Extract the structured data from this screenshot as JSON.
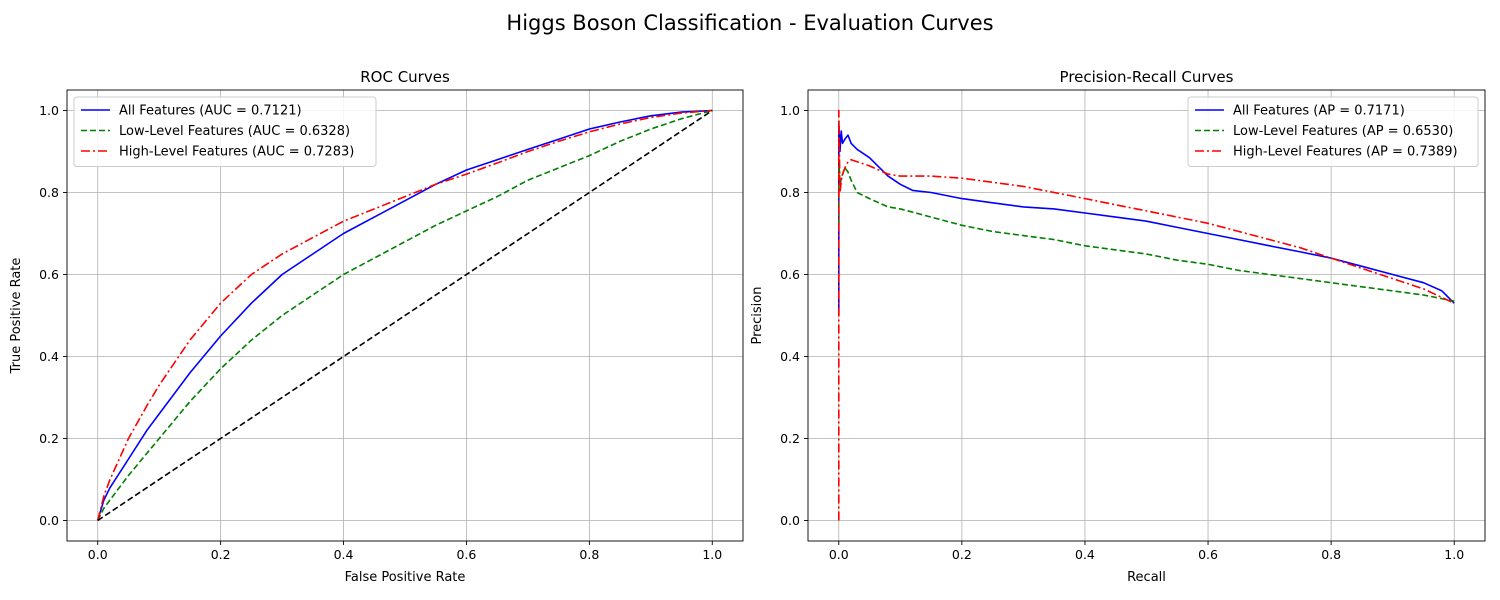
{
  "figure": {
    "title": "Higgs Boson Classification - Evaluation Curves"
  },
  "chart_data": [
    {
      "type": "line",
      "title": "ROC Curves",
      "xlabel": "False Positive Rate",
      "ylabel": "True Positive Rate",
      "xlim": [
        -0.05,
        1.05
      ],
      "ylim": [
        -0.05,
        1.05
      ],
      "xticks": [
        0.0,
        0.2,
        0.4,
        0.6,
        0.8,
        1.0
      ],
      "xtick_labels": [
        "0.0",
        "0.2",
        "0.4",
        "0.6",
        "0.8",
        "1.0"
      ],
      "yticks": [
        0.0,
        0.2,
        0.4,
        0.6,
        0.8,
        1.0
      ],
      "ytick_labels": [
        "0.0",
        "0.2",
        "0.4",
        "0.6",
        "0.8",
        "1.0"
      ],
      "grid": true,
      "legend_position": "upper left",
      "series": [
        {
          "name": "All Features (AUC = 0.7121)",
          "color": "#0000ff",
          "style": "solid",
          "x": [
            0,
            0.01,
            0.02,
            0.05,
            0.08,
            0.1,
            0.15,
            0.2,
            0.25,
            0.3,
            0.35,
            0.4,
            0.45,
            0.5,
            0.55,
            0.6,
            0.65,
            0.7,
            0.75,
            0.8,
            0.85,
            0.9,
            0.95,
            1.0
          ],
          "y": [
            0,
            0.05,
            0.08,
            0.15,
            0.22,
            0.26,
            0.36,
            0.45,
            0.53,
            0.6,
            0.65,
            0.7,
            0.74,
            0.78,
            0.82,
            0.855,
            0.88,
            0.905,
            0.93,
            0.955,
            0.972,
            0.987,
            0.996,
            1.0
          ]
        },
        {
          "name": "Low-Level Features (AUC = 0.6328)",
          "color": "#008000",
          "style": "dashed",
          "x": [
            0,
            0.01,
            0.02,
            0.05,
            0.1,
            0.15,
            0.2,
            0.25,
            0.3,
            0.35,
            0.4,
            0.45,
            0.5,
            0.55,
            0.6,
            0.65,
            0.7,
            0.75,
            0.8,
            0.85,
            0.9,
            0.95,
            1.0
          ],
          "y": [
            0,
            0.03,
            0.05,
            0.11,
            0.2,
            0.29,
            0.37,
            0.44,
            0.5,
            0.55,
            0.6,
            0.64,
            0.68,
            0.72,
            0.755,
            0.79,
            0.83,
            0.86,
            0.89,
            0.925,
            0.955,
            0.98,
            1.0
          ]
        },
        {
          "name": "High-Level Features (AUC = 0.7283)",
          "color": "#ff0000",
          "style": "dashdot",
          "x": [
            0,
            0.01,
            0.02,
            0.05,
            0.08,
            0.1,
            0.15,
            0.2,
            0.25,
            0.3,
            0.35,
            0.4,
            0.45,
            0.5,
            0.55,
            0.6,
            0.65,
            0.7,
            0.75,
            0.8,
            0.85,
            0.9,
            0.95,
            1.0
          ],
          "y": [
            0,
            0.06,
            0.1,
            0.2,
            0.28,
            0.33,
            0.44,
            0.53,
            0.6,
            0.65,
            0.69,
            0.73,
            0.76,
            0.79,
            0.82,
            0.845,
            0.872,
            0.9,
            0.925,
            0.948,
            0.967,
            0.983,
            0.994,
            1.0
          ]
        },
        {
          "name": "",
          "color": "#000000",
          "style": "dashed",
          "x": [
            0,
            1
          ],
          "y": [
            0,
            1
          ]
        }
      ]
    },
    {
      "type": "line",
      "title": "Precision-Recall Curves",
      "xlabel": "Recall",
      "ylabel": "Precision",
      "xlim": [
        -0.05,
        1.05
      ],
      "ylim": [
        -0.05,
        1.05
      ],
      "xticks": [
        0.0,
        0.2,
        0.4,
        0.6,
        0.8,
        1.0
      ],
      "xtick_labels": [
        "0.0",
        "0.2",
        "0.4",
        "0.6",
        "0.8",
        "1.0"
      ],
      "yticks": [
        0.0,
        0.2,
        0.4,
        0.6,
        0.8,
        1.0
      ],
      "ytick_labels": [
        "0.0",
        "0.2",
        "0.4",
        "0.6",
        "0.8",
        "1.0"
      ],
      "grid": true,
      "legend_position": "upper right",
      "series": [
        {
          "name": "All Features (AP = 0.7171)",
          "color": "#0000ff",
          "style": "solid",
          "x": [
            0,
            0.0,
            0.002,
            0.004,
            0.006,
            0.01,
            0.015,
            0.02,
            0.03,
            0.05,
            0.08,
            0.1,
            0.12,
            0.15,
            0.2,
            0.25,
            0.3,
            0.35,
            0.4,
            0.45,
            0.5,
            0.55,
            0.6,
            0.65,
            0.7,
            0.75,
            0.8,
            0.85,
            0.9,
            0.95,
            0.98,
            1.0
          ],
          "y": [
            0.5,
            0.97,
            0.9,
            0.95,
            0.92,
            0.93,
            0.94,
            0.92,
            0.905,
            0.885,
            0.84,
            0.82,
            0.805,
            0.8,
            0.785,
            0.775,
            0.765,
            0.76,
            0.75,
            0.74,
            0.73,
            0.715,
            0.7,
            0.685,
            0.67,
            0.655,
            0.64,
            0.62,
            0.6,
            0.58,
            0.56,
            0.53
          ]
        },
        {
          "name": "Low-Level Features (AP = 0.6530)",
          "color": "#008000",
          "style": "dashed",
          "x": [
            0,
            0.0,
            0.002,
            0.005,
            0.01,
            0.015,
            0.02,
            0.03,
            0.05,
            0.08,
            0.1,
            0.15,
            0.2,
            0.25,
            0.3,
            0.35,
            0.4,
            0.45,
            0.5,
            0.55,
            0.6,
            0.65,
            0.7,
            0.75,
            0.8,
            0.85,
            0.9,
            0.95,
            1.0
          ],
          "y": [
            0.72,
            0.88,
            0.82,
            0.84,
            0.86,
            0.85,
            0.83,
            0.8,
            0.785,
            0.765,
            0.76,
            0.74,
            0.72,
            0.705,
            0.695,
            0.685,
            0.67,
            0.66,
            0.65,
            0.635,
            0.625,
            0.61,
            0.6,
            0.59,
            0.58,
            0.57,
            0.56,
            0.55,
            0.535
          ]
        },
        {
          "name": "High-Level Features (AP = 0.7389)",
          "color": "#ff0000",
          "style": "dashdot",
          "x": [
            0,
            0.0,
            0.002,
            0.005,
            0.01,
            0.015,
            0.02,
            0.03,
            0.05,
            0.08,
            0.1,
            0.15,
            0.2,
            0.25,
            0.3,
            0.35,
            0.4,
            0.45,
            0.5,
            0.55,
            0.6,
            0.65,
            0.7,
            0.75,
            0.8,
            0.85,
            0.9,
            0.95,
            1.0
          ],
          "y": [
            0.0,
            1.0,
            0.8,
            0.84,
            0.86,
            0.875,
            0.88,
            0.875,
            0.865,
            0.845,
            0.84,
            0.84,
            0.835,
            0.825,
            0.815,
            0.8,
            0.785,
            0.77,
            0.755,
            0.74,
            0.725,
            0.705,
            0.685,
            0.665,
            0.64,
            0.615,
            0.59,
            0.565,
            0.53
          ]
        }
      ]
    }
  ]
}
